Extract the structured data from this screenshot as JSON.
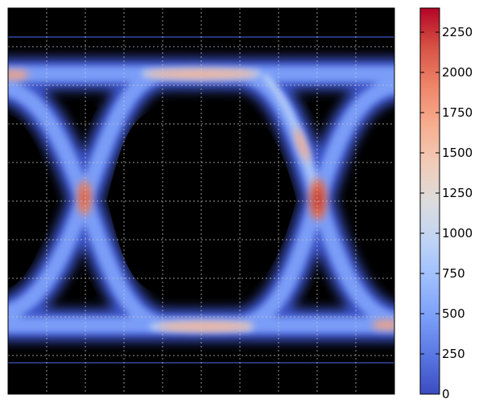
{
  "chart_data": {
    "type": "heatmap",
    "title": "",
    "xlabel": "",
    "ylabel": "",
    "grid": true,
    "x_tick_labels": [],
    "y_tick_labels": [],
    "background_color": "#000000",
    "grid_color": "#c8c8c8",
    "colorbar": {
      "colormap": "coolwarm",
      "vmin": 0,
      "vmax": 2400,
      "ticks": [
        0,
        250,
        500,
        750,
        1000,
        1250,
        1500,
        1750,
        2000,
        2250
      ],
      "tick_labels": [
        "0",
        "250",
        "500",
        "750",
        "1000",
        "1250",
        "1500",
        "1750",
        "2000",
        "2250"
      ],
      "gradient_colors": [
        "#3b4cc0",
        "#5977e3",
        "#7b9ff9",
        "#9ebeff",
        "#c0d4f5",
        "#dddcdc",
        "#f2cbb7",
        "#f7ac8e",
        "#ee8468",
        "#d65244",
        "#b40426"
      ]
    },
    "density_description": "eye diagram: two rails at top and bottom, two crossing points near one-fifth and four-fifths of the width",
    "peak_values": {
      "left_crossing": 1900,
      "right_crossing": 2300,
      "top_rail_center": 1600,
      "bottom_rail_center": 1500,
      "rail_edges": 700
    }
  }
}
